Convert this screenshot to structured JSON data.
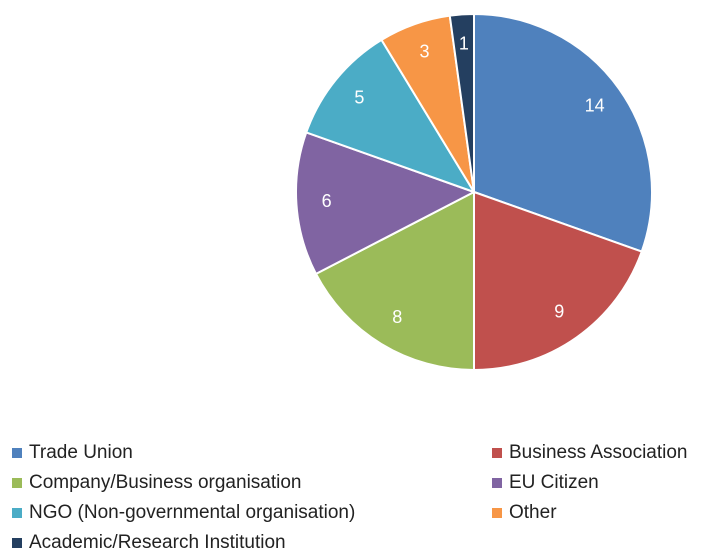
{
  "chart_data": {
    "type": "pie",
    "categories": [
      "Trade Union",
      "Business Association",
      "Company/Business organisation",
      "EU Citizen",
      "NGO (Non-governmental organisation)",
      "Other",
      "Academic/Research Institution"
    ],
    "values": [
      14,
      9,
      8,
      6,
      5,
      3,
      1
    ],
    "colors": [
      "#4f81bd",
      "#c0504d",
      "#9bbb59",
      "#8064a2",
      "#4bacc6",
      "#f79646",
      "#243f60"
    ],
    "legend": "bottom"
  }
}
